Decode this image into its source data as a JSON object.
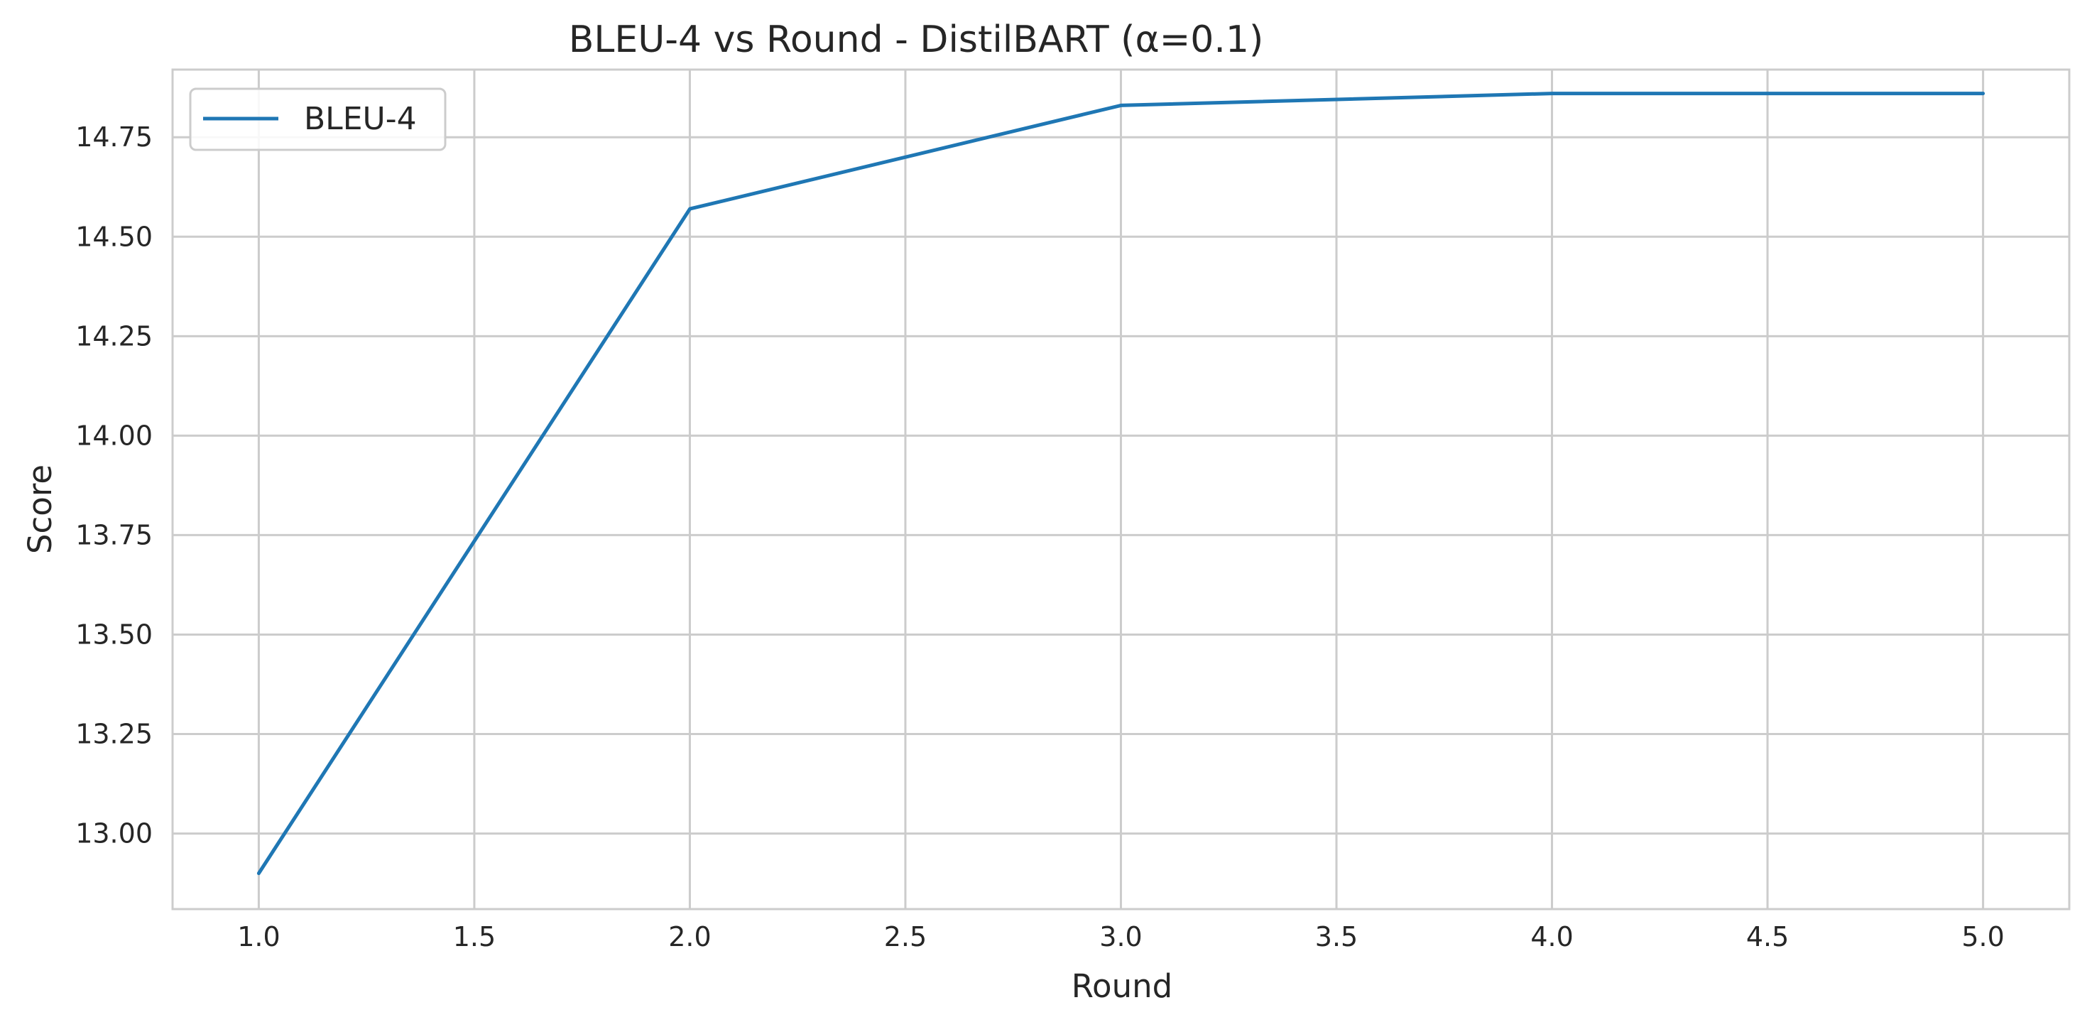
{
  "chart_data": {
    "type": "line",
    "title": "BLEU-4 vs Round - DistilBART (α=0.1)",
    "xlabel": "Round",
    "ylabel": "Score",
    "xlim": [
      0.8,
      5.2
    ],
    "ylim": [
      12.81,
      14.92
    ],
    "x_ticks": [
      1.0,
      1.5,
      2.0,
      2.5,
      3.0,
      3.5,
      4.0,
      4.5,
      5.0
    ],
    "x_tick_labels": [
      "1.0",
      "1.5",
      "2.0",
      "2.5",
      "3.0",
      "3.5",
      "4.0",
      "4.5",
      "5.0"
    ],
    "y_ticks": [
      13.0,
      13.25,
      13.5,
      13.75,
      14.0,
      14.25,
      14.5,
      14.75
    ],
    "y_tick_labels": [
      "13.00",
      "13.25",
      "13.50",
      "13.75",
      "14.00",
      "14.25",
      "14.50",
      "14.75"
    ],
    "grid": true,
    "legend_position": "top-left",
    "series": [
      {
        "name": "BLEU-4",
        "color": "#1f77b4",
        "x": [
          1,
          2,
          3,
          4,
          5
        ],
        "values": [
          12.9,
          14.57,
          14.83,
          14.86,
          14.86
        ]
      }
    ]
  }
}
